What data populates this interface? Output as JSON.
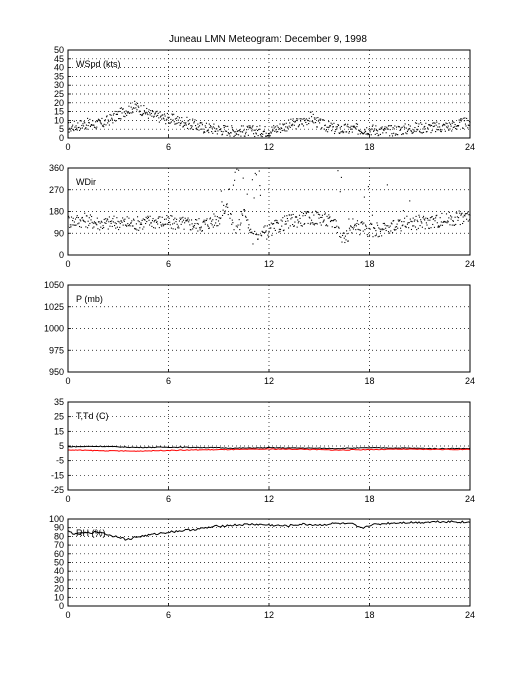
{
  "figure_title": "Juneau LMN Meteogram:  December  9, 1998",
  "chart_data": [
    {
      "type": "scatter",
      "label": "WSpd (kts)",
      "xlim": [
        0,
        24
      ],
      "x_ticks": [
        0,
        6,
        12,
        18,
        24
      ],
      "ylim": [
        0,
        50
      ],
      "y_ticks": [
        0,
        5,
        10,
        15,
        20,
        25,
        30,
        35,
        40,
        45,
        50
      ],
      "grid": true,
      "series": [
        {
          "color": "#000000",
          "x": [
            0,
            1,
            2,
            3,
            3.5,
            4,
            5,
            6,
            7,
            8,
            9,
            10,
            11,
            12,
            13,
            14,
            14.5,
            15,
            16,
            17,
            18,
            19,
            20,
            21,
            22,
            23,
            24
          ],
          "y": [
            6,
            8,
            8,
            13,
            16,
            18,
            13,
            11,
            9,
            6,
            5,
            4,
            4,
            4,
            7,
            9,
            12,
            8,
            5,
            5,
            5,
            4,
            5,
            6,
            6,
            7,
            9
          ]
        }
      ]
    },
    {
      "type": "scatter",
      "label": "WDir",
      "xlim": [
        0,
        24
      ],
      "x_ticks": [
        0,
        6,
        12,
        18,
        24
      ],
      "ylim": [
        0,
        360
      ],
      "y_ticks": [
        0,
        90,
        180,
        270,
        360
      ],
      "grid": true,
      "series": [
        {
          "color": "#000000",
          "x": [
            0,
            1,
            2,
            3,
            4,
            5,
            6,
            7,
            8,
            9,
            9.5,
            10,
            10.5,
            11,
            12,
            13,
            14,
            15,
            16,
            16.5,
            17,
            18,
            19,
            20,
            21,
            22,
            23,
            24
          ],
          "y": [
            140,
            145,
            130,
            135,
            130,
            140,
            135,
            130,
            125,
            150,
            200,
            90,
            180,
            70,
            100,
            135,
            150,
            155,
            130,
            60,
            120,
            100,
            110,
            130,
            135,
            140,
            150,
            160
          ]
        }
      ]
    },
    {
      "type": "line",
      "label": "P (mb)",
      "xlim": [
        0,
        24
      ],
      "x_ticks": [
        0,
        6,
        12,
        18,
        24
      ],
      "ylim": [
        950,
        1050
      ],
      "y_ticks": [
        950,
        975,
        1000,
        1025,
        1050
      ],
      "grid": true,
      "series": []
    },
    {
      "type": "line",
      "label": "T,Td (C)",
      "xlim": [
        0,
        24
      ],
      "x_ticks": [
        0,
        6,
        12,
        18,
        24
      ],
      "ylim": [
        -25,
        35
      ],
      "y_ticks": [
        -25,
        -15,
        -5,
        5,
        15,
        25,
        35
      ],
      "grid": true,
      "series": [
        {
          "color": "#000000",
          "x": [
            0,
            2,
            4,
            6,
            8,
            10,
            12,
            14,
            16,
            18,
            20,
            22,
            24
          ],
          "y": [
            4.5,
            4.8,
            4,
            4.2,
            4,
            3.5,
            3.8,
            3.6,
            3.3,
            3.8,
            3.6,
            3.2,
            3.3
          ]
        },
        {
          "color": "#ff0000",
          "x": [
            0,
            2,
            4,
            6,
            8,
            10,
            12,
            14,
            16,
            18,
            20,
            22,
            24
          ],
          "y": [
            2.3,
            1.8,
            1.5,
            2.0,
            2.4,
            2.6,
            2.9,
            2.8,
            2.2,
            2.6,
            2.8,
            2.7,
            2.6
          ]
        }
      ]
    },
    {
      "type": "line",
      "label": "RH (%)",
      "xlim": [
        0,
        24
      ],
      "x_ticks": [
        0,
        6,
        12,
        18,
        24
      ],
      "ylim": [
        0,
        100
      ],
      "y_ticks": [
        0,
        10,
        20,
        30,
        40,
        50,
        60,
        70,
        80,
        90,
        100
      ],
      "grid": true,
      "series": [
        {
          "color": "#000000",
          "x": [
            0,
            0.5,
            1,
            2,
            2.5,
            3,
            3.5,
            4,
            5,
            6,
            7,
            8,
            9,
            10,
            11,
            12,
            13,
            14,
            15,
            16,
            17,
            17.5,
            18,
            19,
            20,
            21,
            22,
            23,
            24
          ],
          "y": [
            86,
            82,
            84,
            85,
            81,
            80,
            76,
            79,
            82,
            85,
            87,
            89,
            92,
            93,
            94,
            93,
            92,
            94,
            93,
            95,
            94,
            89,
            93,
            95,
            96,
            96,
            97,
            97,
            96
          ]
        }
      ]
    }
  ]
}
